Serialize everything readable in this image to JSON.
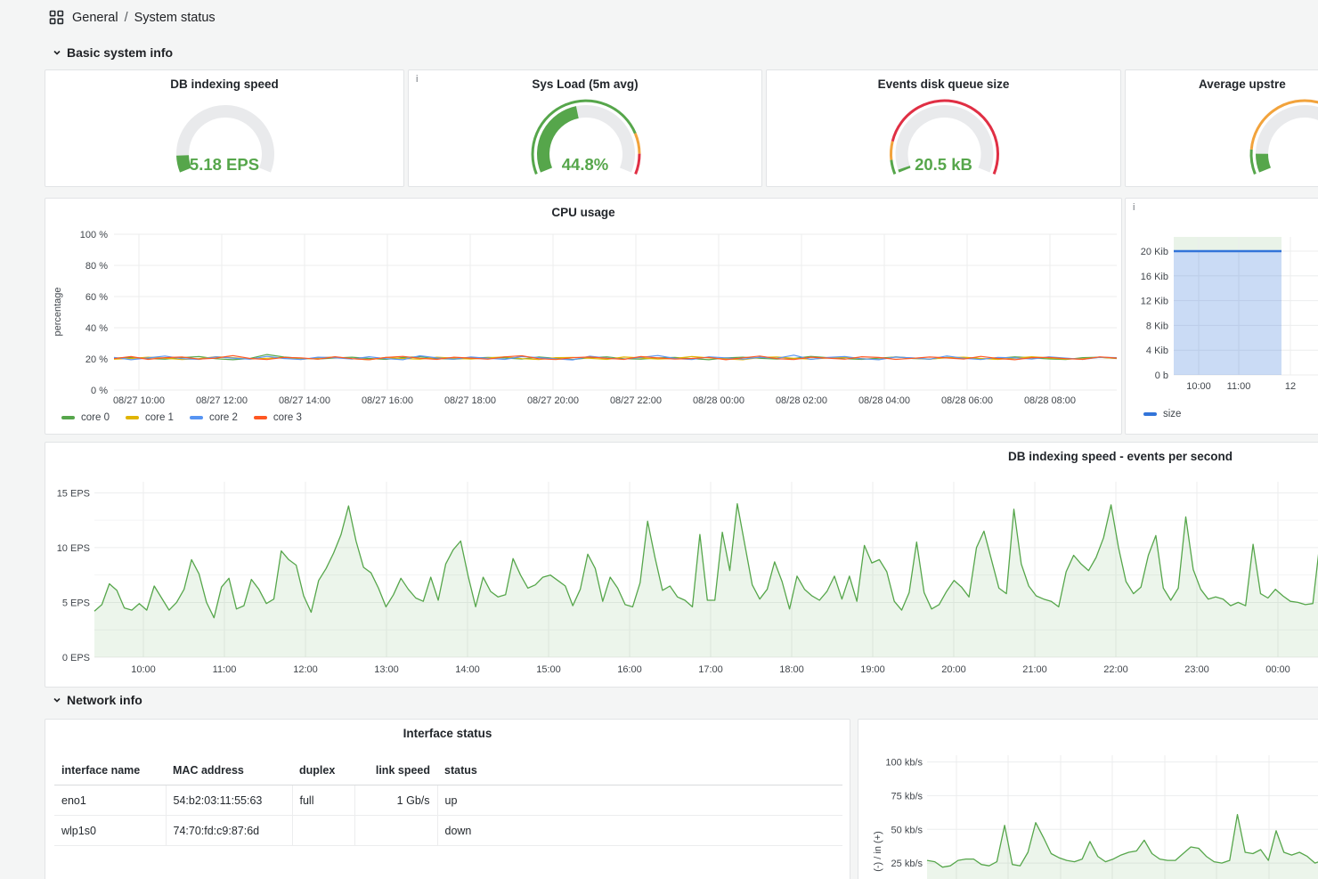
{
  "header": {
    "folder": "General",
    "separator": "/",
    "dashboard": "System status"
  },
  "sections": {
    "basic": {
      "title": "Basic system info"
    },
    "network": {
      "title": "Network info"
    }
  },
  "info_icon_glyph": "i",
  "colors": {
    "green": "#56A64B",
    "green_fill": "rgba(86,166,75,0.11)",
    "band_green": "rgba(86,166,75,0.13)",
    "gold": "#E0B400",
    "blue": "#5794F2",
    "core3": "#FF5722",
    "size_blue": "#3274D9",
    "size_blue_fill": "rgba(50,116,217,0.26)",
    "orange": "#F2A33C",
    "red": "#E02F44",
    "track": "#E9EAEC",
    "grid": "#ECEDEE",
    "grid_minor": "#F3F4F5",
    "axis_text": "#41464C"
  },
  "gauges": [
    {
      "title": "DB indexing speed",
      "value": "5.18 EPS",
      "fraction": 0.09,
      "ring": [],
      "info": false
    },
    {
      "title": "Sys Load (5m avg)",
      "value": "44.8%",
      "fraction": 0.448,
      "ring": [
        [
          0,
          0.8,
          "green"
        ],
        [
          0.8,
          0.9,
          "orange"
        ],
        [
          0.9,
          1,
          "red"
        ]
      ],
      "info": true
    },
    {
      "title": "Events disk queue size",
      "value": "20.5 kB",
      "fraction": 0.015,
      "ring": [
        [
          0,
          0.07,
          "green"
        ],
        [
          0.07,
          0.16,
          "orange"
        ],
        [
          0.16,
          1,
          "red"
        ]
      ],
      "info": false
    },
    {
      "title": "Average upstre",
      "value": "",
      "fraction": 0.1,
      "ring": [
        [
          0,
          0.12,
          "green"
        ],
        [
          0.12,
          1,
          "orange"
        ]
      ],
      "info": false
    }
  ],
  "chart_data": [
    {
      "type": "line",
      "title": "CPU usage",
      "ylabel": "percentage",
      "ylim": [
        0,
        100
      ],
      "grid": true,
      "legend_position": "bottom",
      "y_ticks": [
        {
          "v": 0,
          "label": "0 %"
        },
        {
          "v": 20,
          "label": "20 %"
        },
        {
          "v": 40,
          "label": "40 %"
        },
        {
          "v": 60,
          "label": "60 %"
        },
        {
          "v": 80,
          "label": "80 %"
        },
        {
          "v": 100,
          "label": "100 %"
        }
      ],
      "x_ticks": [
        "08/27 10:00",
        "08/27 12:00",
        "08/27 14:00",
        "08/27 16:00",
        "08/27 18:00",
        "08/27 20:00",
        "08/27 22:00",
        "08/28 00:00",
        "08/28 02:00",
        "08/28 04:00",
        "08/28 06:00",
        "08/28 08:00"
      ],
      "series": [
        {
          "name": "core 0",
          "color_key": "green",
          "values": [
            20.5,
            21.0,
            20.2,
            19.8,
            20.8,
            21.5,
            20.1,
            19.5,
            20.3,
            22.8,
            21.2,
            20.4,
            19.9,
            20.6,
            21.1,
            20.3,
            19.7,
            20.9,
            21.4,
            20.2,
            19.8,
            20.5,
            21.0,
            20.6,
            19.9,
            21.2,
            20.4,
            19.6,
            20.8,
            21.3,
            20.1,
            19.8,
            20.6,
            20.9,
            20.2,
            19.5,
            20.7,
            21.1,
            20.4,
            19.9,
            20.3,
            21.6,
            20.8,
            20.1,
            19.7,
            20.5,
            21.2,
            20.3,
            19.8,
            21.0,
            20.5,
            19.9,
            20.4,
            21.3,
            20.7,
            20.0,
            19.6,
            20.8,
            21.1,
            20.3
          ]
        },
        {
          "name": "core 1",
          "color_key": "gold",
          "values": [
            19.8,
            20.3,
            21.1,
            20.5,
            19.6,
            20.2,
            21.4,
            20.8,
            19.9,
            20.4,
            21.0,
            19.7,
            20.6,
            21.2,
            20.1,
            19.5,
            20.9,
            20.3,
            19.8,
            21.1,
            20.5,
            19.9,
            20.7,
            21.3,
            20.2,
            19.6,
            20.8,
            21.0,
            20.4,
            19.7,
            21.2,
            20.6,
            19.9,
            20.3,
            21.5,
            20.7,
            20.0,
            19.5,
            20.9,
            21.2,
            20.4,
            19.8,
            20.6,
            21.0,
            20.2,
            19.6,
            21.3,
            20.5,
            19.9,
            20.8,
            21.1,
            20.3,
            19.7,
            20.5,
            21.4,
            20.6,
            19.9,
            20.2,
            21.0,
            20.4
          ]
        },
        {
          "name": "core 2",
          "color_key": "blue",
          "values": [
            21.0,
            19.5,
            20.6,
            21.8,
            20.2,
            19.7,
            21.3,
            20.5,
            19.8,
            21.6,
            20.3,
            19.6,
            21.1,
            20.8,
            19.9,
            21.4,
            20.2,
            19.5,
            22.0,
            20.6,
            19.8,
            21.2,
            20.4,
            19.7,
            21.5,
            20.8,
            20.0,
            19.4,
            21.7,
            20.5,
            19.8,
            21.0,
            22.2,
            20.3,
            19.6,
            21.3,
            20.7,
            19.9,
            21.1,
            20.4,
            22.4,
            19.7,
            20.9,
            21.5,
            20.1,
            19.5,
            21.2,
            20.6,
            19.8,
            21.9,
            20.4,
            19.6,
            21.0,
            20.7,
            19.9,
            21.3,
            20.5,
            19.7,
            21.1,
            20.8
          ]
        },
        {
          "name": "core 3",
          "color_key": "core3",
          "values": [
            20.2,
            21.5,
            19.7,
            20.8,
            21.2,
            19.9,
            20.5,
            22.1,
            20.3,
            19.6,
            21.0,
            20.7,
            19.8,
            21.4,
            20.2,
            19.5,
            20.9,
            21.6,
            20.4,
            19.7,
            21.1,
            20.5,
            19.8,
            21.3,
            22.0,
            20.1,
            19.6,
            20.8,
            21.2,
            20.4,
            19.7,
            21.5,
            20.6,
            19.9,
            20.3,
            21.0,
            19.5,
            20.7,
            21.8,
            20.2,
            19.6,
            21.1,
            20.5,
            19.8,
            21.4,
            20.9,
            19.7,
            20.4,
            21.2,
            20.6,
            19.9,
            21.6,
            20.3,
            19.5,
            20.8,
            21.0,
            20.2,
            19.7,
            21.3,
            20.5
          ]
        }
      ]
    },
    {
      "type": "area",
      "title": "",
      "ylim": [
        0,
        22.3
      ],
      "grid": true,
      "legend_position": "bottom",
      "y_ticks": [
        {
          "v": 0,
          "label": "0 b"
        },
        {
          "v": 4,
          "label": "4 Kib"
        },
        {
          "v": 8,
          "label": "8 Kib"
        },
        {
          "v": 12,
          "label": "12 Kib"
        },
        {
          "v": 16,
          "label": "16 Kib"
        },
        {
          "v": 20,
          "label": "20 Kib"
        }
      ],
      "x_ticks": [
        "10:00",
        "11:00",
        "12"
      ],
      "band": {
        "from": 20,
        "to": 22.3,
        "fill_key": "band_green"
      },
      "series": [
        {
          "name": "size",
          "color_key": "size_blue",
          "fill_key": "size_blue_fill",
          "line_width": 2.5,
          "values": [
            20,
            20
          ]
        }
      ]
    },
    {
      "type": "area",
      "title": "DB indexing speed - events per second",
      "ylim": [
        0,
        16
      ],
      "grid": true,
      "y_ticks": [
        {
          "v": 0,
          "label": "0 EPS"
        },
        {
          "v": 5,
          "label": "5 EPS"
        },
        {
          "v": 10,
          "label": "10 EPS"
        },
        {
          "v": 15,
          "label": "15 EPS"
        }
      ],
      "y_minor_ticks": [
        2.5,
        7.5,
        12.5
      ],
      "x_ticks": [
        "10:00",
        "11:00",
        "12:00",
        "13:00",
        "14:00",
        "15:00",
        "16:00",
        "17:00",
        "18:00",
        "19:00",
        "20:00",
        "21:00",
        "22:00",
        "23:00",
        "00:00"
      ],
      "series": [
        {
          "name": "events per second",
          "color_key": "green",
          "fill_key": "green_fill",
          "line_width": 1.3,
          "values": [
            4.2,
            4.8,
            6.7,
            6.1,
            4.5,
            4.3,
            4.9,
            4.3,
            6.5,
            5.4,
            4.3,
            5.0,
            6.2,
            8.9,
            7.6,
            5.0,
            3.6,
            6.4,
            7.2,
            4.4,
            4.7,
            7.1,
            6.2,
            4.9,
            5.3,
            9.7,
            8.9,
            8.4,
            5.6,
            4.1,
            7.0,
            8.1,
            9.5,
            11.2,
            13.8,
            10.6,
            8.2,
            7.7,
            6.3,
            4.6,
            5.7,
            7.2,
            6.2,
            5.4,
            5.1,
            7.3,
            5.2,
            8.5,
            9.8,
            10.6,
            7.4,
            4.6,
            7.3,
            6.0,
            5.5,
            5.7,
            9.0,
            7.5,
            6.3,
            6.6,
            7.3,
            7.5,
            7.0,
            6.5,
            4.7,
            6.2,
            9.4,
            8.1,
            5.1,
            7.3,
            6.3,
            4.8,
            4.6,
            6.8,
            12.4,
            9.1,
            6.1,
            6.5,
            5.5,
            5.2,
            4.6,
            11.2,
            5.2,
            5.2,
            11.4,
            7.9,
            14.0,
            10.3,
            6.6,
            5.3,
            6.2,
            8.7,
            6.9,
            4.4,
            7.4,
            6.2,
            5.6,
            5.2,
            6.0,
            7.4,
            5.3,
            7.4,
            5.1,
            10.2,
            8.6,
            8.9,
            7.8,
            5.1,
            4.3,
            5.9,
            10.5,
            5.9,
            4.4,
            4.8,
            6.0,
            7.0,
            6.4,
            5.5,
            10.0,
            11.5,
            8.9,
            6.3,
            5.8,
            13.5,
            8.5,
            6.5,
            5.6,
            5.3,
            5.1,
            4.6,
            7.8,
            9.3,
            8.5,
            7.9,
            9.1,
            10.9,
            13.9,
            10.0,
            6.9,
            5.8,
            6.4,
            9.3,
            11.1,
            6.3,
            5.2,
            6.3,
            12.8,
            8.0,
            6.2,
            5.3,
            5.5,
            5.3,
            4.7,
            5.0,
            4.7,
            10.3,
            5.8,
            5.4,
            6.2,
            5.6,
            5.1,
            5.0,
            4.8,
            4.9,
            10.8,
            6.1
          ]
        }
      ]
    },
    {
      "type": "area",
      "title": "",
      "ylabel": "(-) / in (+)",
      "ylim": [
        0,
        105
      ],
      "grid": true,
      "y_ticks": [
        {
          "v": 25,
          "label": "25 kb/s"
        },
        {
          "v": 50,
          "label": "50 kb/s"
        },
        {
          "v": 75,
          "label": "75 kb/s"
        },
        {
          "v": 100,
          "label": "100 kb/s"
        }
      ],
      "x_ticks": [],
      "series": [
        {
          "name": "in",
          "color_key": "green",
          "fill_key": "green_fill",
          "line_width": 1.3,
          "values": [
            27,
            26,
            22,
            23,
            27,
            28,
            28,
            24,
            23,
            26,
            53,
            24,
            23,
            33,
            55,
            44,
            32,
            29,
            27,
            26,
            28,
            41,
            30,
            26,
            28,
            31,
            33,
            34,
            42,
            32,
            28,
            27,
            27,
            32,
            37,
            36,
            30,
            26,
            25,
            27,
            61,
            33,
            32,
            35,
            27,
            49,
            33,
            31,
            33,
            30,
            25,
            27,
            30
          ]
        }
      ]
    }
  ],
  "size_legend": [
    {
      "name": "size",
      "color_key": "size_blue"
    }
  ],
  "table": {
    "title": "Interface status",
    "columns": [
      {
        "label": "interface name",
        "align": "left"
      },
      {
        "label": "MAC address",
        "align": "left"
      },
      {
        "label": "duplex",
        "align": "left"
      },
      {
        "label": "link speed",
        "align": "right"
      },
      {
        "label": "status",
        "align": "left"
      }
    ],
    "rows": [
      [
        "eno1",
        "54:b2:03:11:55:63",
        "full",
        "1 Gb/s",
        "up"
      ],
      [
        "wlp1s0",
        "74:70:fd:c9:87:6d",
        "",
        "",
        "down"
      ]
    ]
  }
}
